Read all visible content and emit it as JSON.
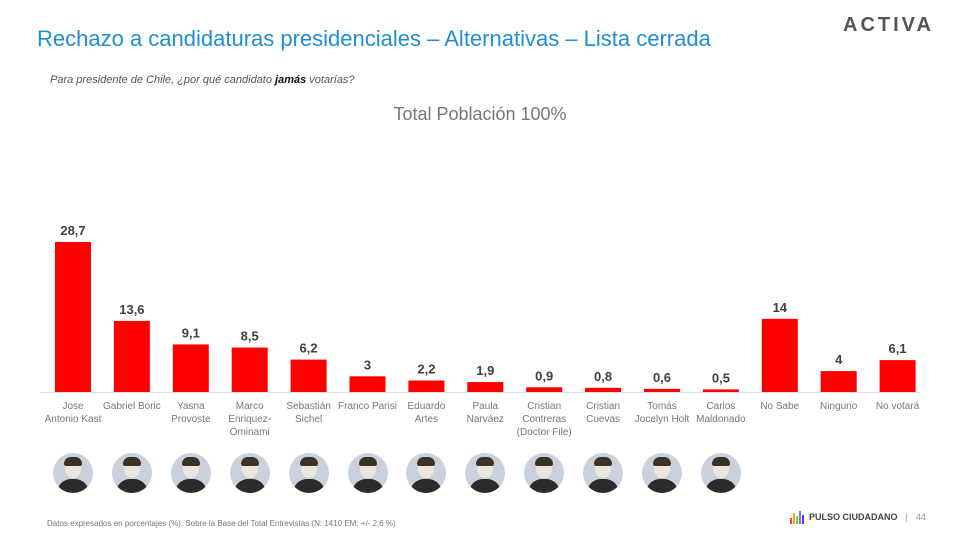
{
  "header": {
    "title": "Rechazo a candidaturas presidenciales – Alternativas – Lista cerrada",
    "logo": "ACTIVA",
    "question_before": "Para presidente de Chile, ¿por qué candidato ",
    "question_bold": "jamás",
    "question_after": " votarías?"
  },
  "chart_data": {
    "type": "bar",
    "title": "Total Población 100%",
    "categories": [
      [
        "Jose",
        "Antonio Kast"
      ],
      [
        "Gabriel Boric"
      ],
      [
        "Yasna",
        "Provoste"
      ],
      [
        "Marco",
        "Enriquez-",
        "Ominami"
      ],
      [
        "Sebastián",
        "Sichel"
      ],
      [
        "Franco Parisi"
      ],
      [
        "Eduardo",
        "Artes"
      ],
      [
        "Paula",
        "Narváez"
      ],
      [
        "Cristian",
        "Contreras",
        "(Doctor File)"
      ],
      [
        "Cristian",
        "Cuevas"
      ],
      [
        "Tomás",
        "Jocelyn Holt"
      ],
      [
        "Carlos",
        "Maldonado"
      ],
      [
        "No Sabe"
      ],
      [
        "Ninguno"
      ],
      [
        "No votará"
      ]
    ],
    "values": [
      28.7,
      13.6,
      9.1,
      8.5,
      6.2,
      3,
      2.2,
      1.9,
      0.9,
      0.8,
      0.6,
      0.5,
      14,
      4,
      6.1
    ],
    "value_labels": [
      "28,7",
      "13,6",
      "9,1",
      "8,5",
      "6,2",
      "3",
      "2,2",
      "1,9",
      "0,9",
      "0,8",
      "0,6",
      "0,5",
      "14",
      "4",
      "6,1"
    ],
    "bar_color": "#ff0000",
    "ylim": [
      0,
      28.7
    ],
    "grid": false,
    "legend": "none"
  },
  "footer": {
    "note": "Datos expresados en porcentajes (%). Sobre la Base del Total Entrevistas (N: 1410  EM: +/- 2,6 %)",
    "brand": "PULSO CIUDADANO",
    "separator": "|",
    "page": "44"
  }
}
